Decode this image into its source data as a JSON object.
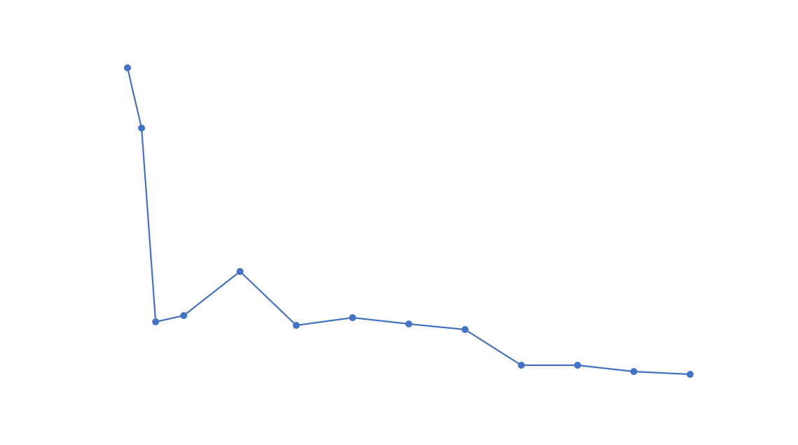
{
  "chart_data": {
    "type": "line",
    "x": [
      0,
      1,
      2,
      4,
      8,
      12,
      16,
      20,
      24,
      28,
      32,
      36,
      40
    ],
    "series": [
      {
        "color": "#4472c4",
        "values": [
          97.6,
          80.4,
          25,
          26.8,
          39.4,
          24,
          26.2,
          24.4,
          22.8,
          12.6,
          12.6,
          10.8,
          10
        ]
      }
    ],
    "xlim": [
      0,
      40
    ],
    "ylim": [
      0,
      100
    ]
  }
}
